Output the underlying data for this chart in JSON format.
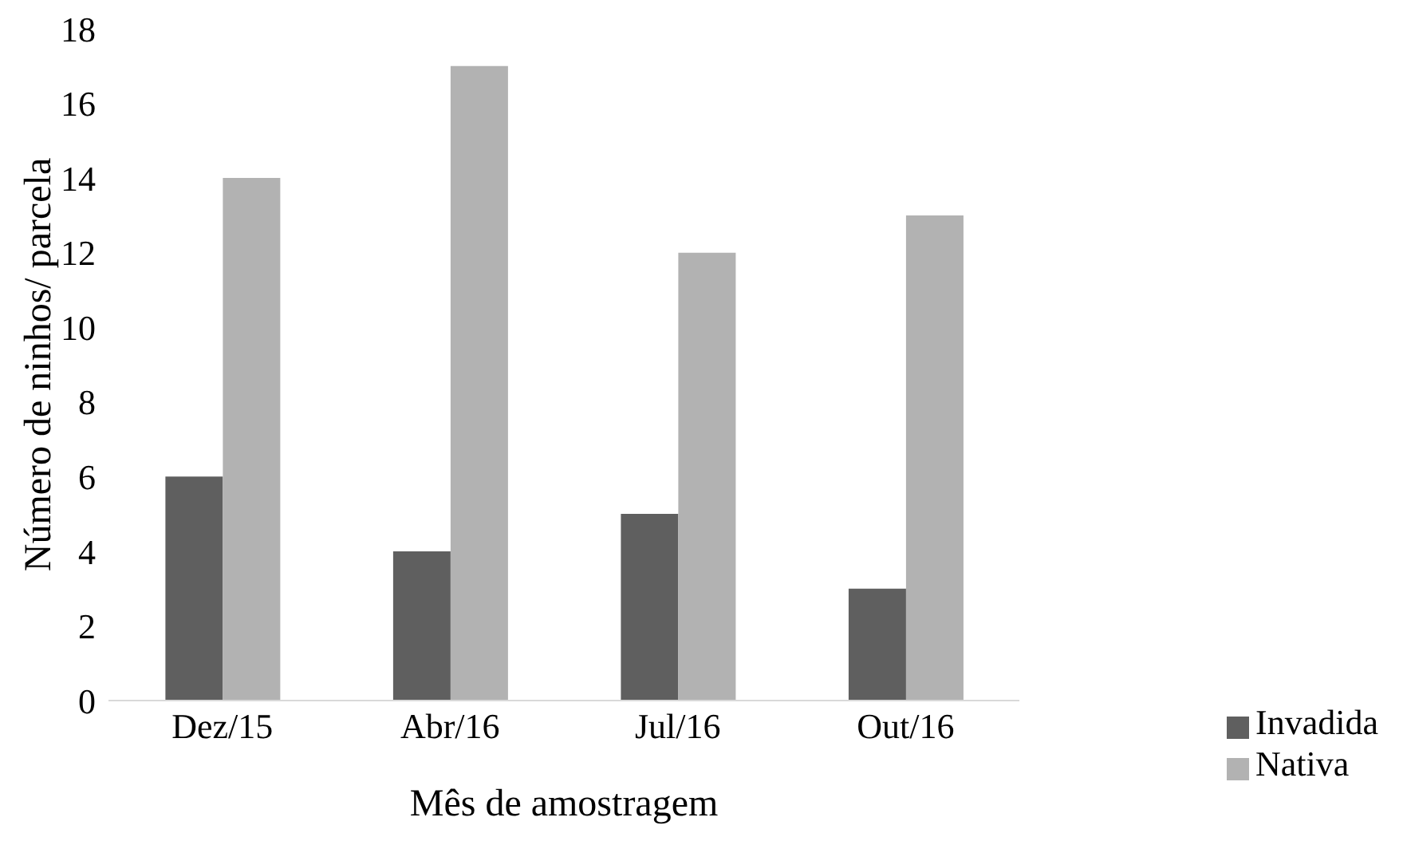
{
  "chart_data": {
    "type": "bar",
    "xlabel": "Mês de amostragem",
    "ylabel": "Número de ninhos/ parcela",
    "categories": [
      "Dez/15",
      "Abr/16",
      "Jul/16",
      "Out/16"
    ],
    "series": [
      {
        "name": "Invadida",
        "color": "#5f5f5f",
        "values": [
          6,
          4,
          5,
          3
        ]
      },
      {
        "name": "Nativa",
        "color": "#b2b2b2",
        "values": [
          14,
          17,
          12,
          13
        ]
      }
    ],
    "ylim": [
      0,
      18
    ],
    "yticks": [
      0,
      2,
      4,
      6,
      8,
      10,
      12,
      14,
      16,
      18
    ],
    "grid": false,
    "legend": "right"
  }
}
